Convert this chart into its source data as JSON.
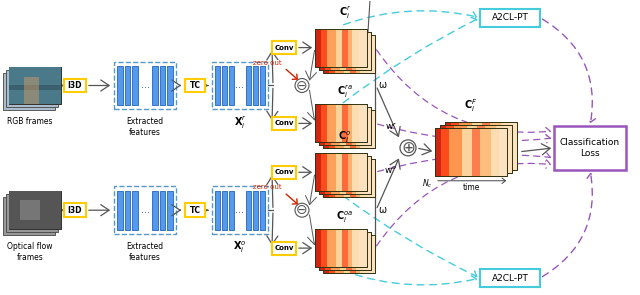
{
  "bg_color": "#ffffff",
  "rgb_label": "RGB frames",
  "flow_label": "Optical flow\nframes",
  "extracted_label": "Extracted\nfeatures",
  "x_r_label": "$\\mathbf{X}_i^r$",
  "x_o_label": "$\\mathbf{X}_i^o$",
  "c_r_label": "$\\mathbf{C}_i^r$",
  "c_ra_label": "$\\mathbf{C}_i^{ra}$",
  "c_o_label": "$\\mathbf{C}_i^o$",
  "c_oa_label": "$\\mathbf{C}_i^{oa}$",
  "c_f_label": "$\\mathbf{C}_i^F$",
  "conv_label": "Conv",
  "tc_label": "TC",
  "i3d_label": "I3D",
  "a2cl_label": "A2CL-PT",
  "class_loss_label": "Classification\nLoss",
  "zero_out_label": "zero out",
  "omega_label": "ω",
  "wr_label": "w$^r$",
  "wo_label": "w$^o$",
  "nc_label": "$N_c$",
  "time_label": "time",
  "dashed_border_color": "#5599cc",
  "yellow_border_color": "#ffcc00",
  "purple_color": "#9955bb",
  "cyan_color": "#44ccdd",
  "red_arrow_color": "#cc2200",
  "gray_arrow_color": "#555555"
}
